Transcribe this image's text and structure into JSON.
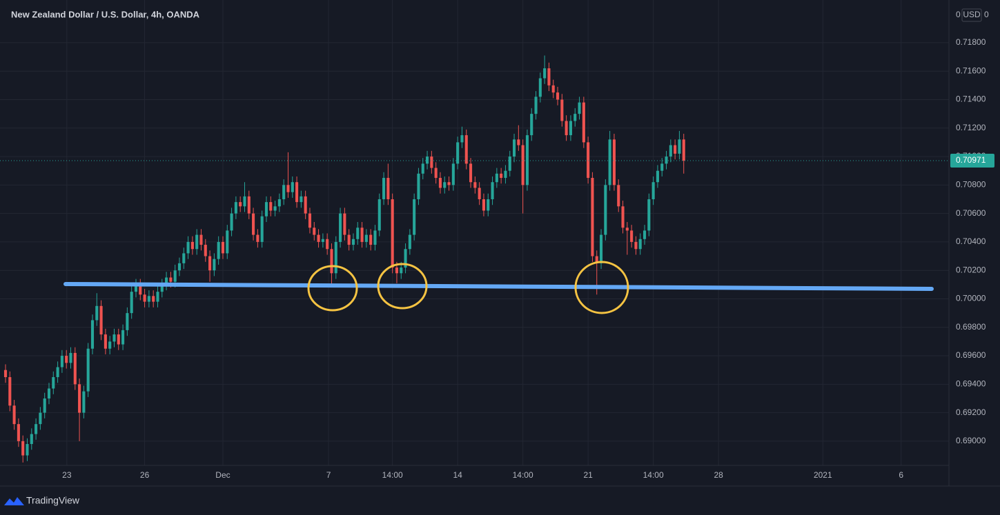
{
  "chart_data": {
    "type": "candlestick",
    "title": "New Zealand Dollar / U.S. Dollar, 4h, OANDA",
    "scale_header": {
      "left": "0",
      "unit": "USD",
      "right": "0"
    },
    "brand": "TradingView",
    "up_color": "#26a69a",
    "down_color": "#ef5350",
    "grid": true,
    "xlim": [
      -1.27,
      217
    ],
    "xticks": [
      {
        "value": 14.1,
        "label": "23"
      },
      {
        "value": 32,
        "label": "26"
      },
      {
        "value": 50,
        "label": "Dec"
      },
      {
        "value": 74.3,
        "label": "7"
      },
      {
        "value": 89,
        "label": "14:00"
      },
      {
        "value": 104,
        "label": "14"
      },
      {
        "value": 119,
        "label": "14:00"
      },
      {
        "value": 134,
        "label": "21"
      },
      {
        "value": 149,
        "label": "14:00"
      },
      {
        "value": 164,
        "label": "28"
      },
      {
        "value": 188,
        "label": "2021"
      },
      {
        "value": 206,
        "label": "6"
      }
    ],
    "ylim": [
      0.6883,
      0.721
    ],
    "yticks": [
      {
        "value": 0.69,
        "label": "0.69000"
      },
      {
        "value": 0.692,
        "label": "0.69200"
      },
      {
        "value": 0.694,
        "label": "0.69400"
      },
      {
        "value": 0.696,
        "label": "0.69600"
      },
      {
        "value": 0.698,
        "label": "0.69800"
      },
      {
        "value": 0.7,
        "label": "0.70000"
      },
      {
        "value": 0.702,
        "label": "0.70200"
      },
      {
        "value": 0.704,
        "label": "0.70400"
      },
      {
        "value": 0.706,
        "label": "0.70600"
      },
      {
        "value": 0.708,
        "label": "0.70800"
      },
      {
        "value": 0.71,
        "label": "0.71000"
      },
      {
        "value": 0.712,
        "label": "0.71200"
      },
      {
        "value": 0.714,
        "label": "0.71400"
      },
      {
        "value": 0.716,
        "label": "0.71600"
      },
      {
        "value": 0.718,
        "label": "0.71800"
      }
    ],
    "candles": [
      [
        0.695,
        0.6954,
        0.6941,
        0.6945
      ],
      [
        0.6945,
        0.6949,
        0.6921,
        0.6925
      ],
      [
        0.6925,
        0.6929,
        0.6908,
        0.6912
      ],
      [
        0.6912,
        0.6916,
        0.6896,
        0.69
      ],
      [
        0.69,
        0.6904,
        0.6885,
        0.689
      ],
      [
        0.689,
        0.6902,
        0.6886,
        0.6898
      ],
      [
        0.6898,
        0.6909,
        0.6894,
        0.6905
      ],
      [
        0.6905,
        0.6916,
        0.6901,
        0.6912
      ],
      [
        0.6912,
        0.6924,
        0.6908,
        0.692
      ],
      [
        0.692,
        0.6934,
        0.6916,
        0.693
      ],
      [
        0.693,
        0.6941,
        0.6926,
        0.6937
      ],
      [
        0.6937,
        0.6949,
        0.6933,
        0.6945
      ],
      [
        0.6945,
        0.6956,
        0.6941,
        0.6952
      ],
      [
        0.6952,
        0.6964,
        0.6948,
        0.696
      ],
      [
        0.696,
        0.6964,
        0.6951,
        0.6955
      ],
      [
        0.6955,
        0.6966,
        0.6951,
        0.6962
      ],
      [
        0.6962,
        0.6966,
        0.6936,
        0.694
      ],
      [
        0.694,
        0.6944,
        0.69,
        0.692
      ],
      [
        0.692,
        0.6939,
        0.6916,
        0.6935
      ],
      [
        0.6935,
        0.6969,
        0.6931,
        0.6965
      ],
      [
        0.6965,
        0.6989,
        0.6961,
        0.6985
      ],
      [
        0.6985,
        0.7004,
        0.6981,
        0.6995
      ],
      [
        0.6995,
        0.6999,
        0.6971,
        0.6975
      ],
      [
        0.6975,
        0.6979,
        0.6961,
        0.6965
      ],
      [
        0.6965,
        0.6974,
        0.6961,
        0.697
      ],
      [
        0.697,
        0.6979,
        0.6966,
        0.6975
      ],
      [
        0.6975,
        0.6979,
        0.6964,
        0.6968
      ],
      [
        0.6968,
        0.6982,
        0.6964,
        0.6978
      ],
      [
        0.6978,
        0.6994,
        0.6974,
        0.699
      ],
      [
        0.699,
        0.7009,
        0.6986,
        0.7005
      ],
      [
        0.7005,
        0.7014,
        0.7001,
        0.701
      ],
      [
        0.701,
        0.7014,
        0.6999,
        0.7003
      ],
      [
        0.7003,
        0.7007,
        0.6994,
        0.6998
      ],
      [
        0.6998,
        0.7006,
        0.6994,
        0.7002
      ],
      [
        0.7002,
        0.7006,
        0.6994,
        0.6998
      ],
      [
        0.6998,
        0.7009,
        0.6994,
        0.7005
      ],
      [
        0.7005,
        0.7014,
        0.7001,
        0.701
      ],
      [
        0.701,
        0.7019,
        0.7006,
        0.7015
      ],
      [
        0.7015,
        0.7019,
        0.7008,
        0.7012
      ],
      [
        0.7012,
        0.7024,
        0.7008,
        0.702
      ],
      [
        0.702,
        0.7029,
        0.7016,
        0.7025
      ],
      [
        0.7025,
        0.7036,
        0.7021,
        0.7032
      ],
      [
        0.7032,
        0.7044,
        0.7028,
        0.704
      ],
      [
        0.704,
        0.7044,
        0.7031,
        0.7035
      ],
      [
        0.7035,
        0.7049,
        0.7031,
        0.7045
      ],
      [
        0.7045,
        0.7049,
        0.7034,
        0.7038
      ],
      [
        0.7038,
        0.7042,
        0.7026,
        0.703
      ],
      [
        0.703,
        0.7034,
        0.7012,
        0.702
      ],
      [
        0.702,
        0.7032,
        0.7016,
        0.7028
      ],
      [
        0.7028,
        0.7044,
        0.7024,
        0.704
      ],
      [
        0.704,
        0.7044,
        0.7028,
        0.7032
      ],
      [
        0.7032,
        0.7052,
        0.7028,
        0.7048
      ],
      [
        0.7048,
        0.7064,
        0.7044,
        0.706
      ],
      [
        0.706,
        0.7072,
        0.7056,
        0.7068
      ],
      [
        0.7068,
        0.7072,
        0.7061,
        0.7065
      ],
      [
        0.7065,
        0.7082,
        0.7061,
        0.7072
      ],
      [
        0.7072,
        0.7076,
        0.7056,
        0.706
      ],
      [
        0.706,
        0.7064,
        0.7041,
        0.7045
      ],
      [
        0.7045,
        0.7049,
        0.7036,
        0.704
      ],
      [
        0.704,
        0.7062,
        0.7036,
        0.7058
      ],
      [
        0.7058,
        0.7072,
        0.7054,
        0.7068
      ],
      [
        0.7068,
        0.7072,
        0.7058,
        0.7062
      ],
      [
        0.7062,
        0.7069,
        0.7058,
        0.7065
      ],
      [
        0.7065,
        0.7074,
        0.7061,
        0.707
      ],
      [
        0.707,
        0.7084,
        0.7066,
        0.708
      ],
      [
        0.708,
        0.7103,
        0.7071,
        0.7075
      ],
      [
        0.7075,
        0.7086,
        0.7071,
        0.7082
      ],
      [
        0.7082,
        0.7086,
        0.7064,
        0.7068
      ],
      [
        0.7068,
        0.7076,
        0.7064,
        0.7072
      ],
      [
        0.7072,
        0.7076,
        0.7056,
        0.706
      ],
      [
        0.706,
        0.7064,
        0.7046,
        0.705
      ],
      [
        0.705,
        0.7054,
        0.7041,
        0.7045
      ],
      [
        0.7045,
        0.7049,
        0.7036,
        0.704
      ],
      [
        0.704,
        0.7046,
        0.7036,
        0.7042
      ],
      [
        0.7042,
        0.7046,
        0.7031,
        0.7035
      ],
      [
        0.7035,
        0.7039,
        0.7008,
        0.7018
      ],
      [
        0.7018,
        0.7044,
        0.7014,
        0.704
      ],
      [
        0.704,
        0.7064,
        0.7036,
        0.706
      ],
      [
        0.706,
        0.7064,
        0.7041,
        0.7045
      ],
      [
        0.7045,
        0.7049,
        0.7034,
        0.7038
      ],
      [
        0.7038,
        0.7046,
        0.7034,
        0.7042
      ],
      [
        0.7042,
        0.7054,
        0.7038,
        0.705
      ],
      [
        0.705,
        0.7054,
        0.7036,
        0.704
      ],
      [
        0.704,
        0.7049,
        0.7036,
        0.7045
      ],
      [
        0.7045,
        0.7049,
        0.7034,
        0.7038
      ],
      [
        0.7038,
        0.7052,
        0.7034,
        0.7048
      ],
      [
        0.7048,
        0.7074,
        0.7044,
        0.707
      ],
      [
        0.707,
        0.7089,
        0.7066,
        0.7085
      ],
      [
        0.7085,
        0.7095,
        0.7066,
        0.707
      ],
      [
        0.707,
        0.7074,
        0.7018,
        0.7022
      ],
      [
        0.7022,
        0.7026,
        0.7011,
        0.7018
      ],
      [
        0.7018,
        0.7026,
        0.7014,
        0.7022
      ],
      [
        0.7022,
        0.7039,
        0.7018,
        0.7035
      ],
      [
        0.7035,
        0.7049,
        0.7031,
        0.7045
      ],
      [
        0.7045,
        0.7074,
        0.7041,
        0.707
      ],
      [
        0.707,
        0.7092,
        0.7066,
        0.7088
      ],
      [
        0.7088,
        0.7099,
        0.7084,
        0.7095
      ],
      [
        0.7095,
        0.7104,
        0.7091,
        0.71
      ],
      [
        0.71,
        0.7104,
        0.7088,
        0.7092
      ],
      [
        0.7092,
        0.7096,
        0.7081,
        0.7085
      ],
      [
        0.7085,
        0.7089,
        0.7074,
        0.7078
      ],
      [
        0.7078,
        0.7086,
        0.7074,
        0.7082
      ],
      [
        0.7082,
        0.7086,
        0.7076,
        0.708
      ],
      [
        0.708,
        0.7099,
        0.7076,
        0.7095
      ],
      [
        0.7095,
        0.7114,
        0.7091,
        0.711
      ],
      [
        0.711,
        0.7121,
        0.7106,
        0.7115
      ],
      [
        0.7115,
        0.7119,
        0.7091,
        0.7095
      ],
      [
        0.7095,
        0.7099,
        0.7078,
        0.7082
      ],
      [
        0.7082,
        0.7086,
        0.7074,
        0.7078
      ],
      [
        0.7078,
        0.7082,
        0.7066,
        0.707
      ],
      [
        0.707,
        0.7074,
        0.7058,
        0.7062
      ],
      [
        0.7062,
        0.7074,
        0.7058,
        0.707
      ],
      [
        0.707,
        0.7086,
        0.7066,
        0.7082
      ],
      [
        0.7082,
        0.7092,
        0.7078,
        0.7088
      ],
      [
        0.7088,
        0.7092,
        0.7081,
        0.7085
      ],
      [
        0.7085,
        0.7094,
        0.7081,
        0.709
      ],
      [
        0.709,
        0.7104,
        0.7086,
        0.71
      ],
      [
        0.71,
        0.7116,
        0.7096,
        0.7112
      ],
      [
        0.7112,
        0.7122,
        0.7104,
        0.7108
      ],
      [
        0.7108,
        0.7112,
        0.706,
        0.708
      ],
      [
        0.708,
        0.7119,
        0.7076,
        0.7115
      ],
      [
        0.7115,
        0.7134,
        0.7111,
        0.713
      ],
      [
        0.713,
        0.7146,
        0.7126,
        0.7142
      ],
      [
        0.7142,
        0.7159,
        0.7138,
        0.7155
      ],
      [
        0.7155,
        0.7171,
        0.7151,
        0.7162
      ],
      [
        0.7162,
        0.7166,
        0.7146,
        0.715
      ],
      [
        0.715,
        0.7154,
        0.7141,
        0.7145
      ],
      [
        0.7145,
        0.7149,
        0.7136,
        0.714
      ],
      [
        0.714,
        0.7144,
        0.7121,
        0.7125
      ],
      [
        0.7125,
        0.7129,
        0.7111,
        0.7115
      ],
      [
        0.7115,
        0.7129,
        0.7111,
        0.7125
      ],
      [
        0.7125,
        0.7134,
        0.7121,
        0.713
      ],
      [
        0.713,
        0.7142,
        0.7126,
        0.7138
      ],
      [
        0.7138,
        0.7142,
        0.7106,
        0.711
      ],
      [
        0.711,
        0.7114,
        0.7081,
        0.7085
      ],
      [
        0.7085,
        0.7089,
        0.7026,
        0.703
      ],
      [
        0.703,
        0.7034,
        0.7003,
        0.7025
      ],
      [
        0.7025,
        0.7049,
        0.7021,
        0.7045
      ],
      [
        0.7045,
        0.7084,
        0.7041,
        0.708
      ],
      [
        0.708,
        0.7118,
        0.7076,
        0.7112
      ],
      [
        0.7112,
        0.7116,
        0.7076,
        0.708
      ],
      [
        0.708,
        0.7084,
        0.7061,
        0.7065
      ],
      [
        0.7065,
        0.7069,
        0.7046,
        0.705
      ],
      [
        0.705,
        0.7054,
        0.7031,
        0.7048
      ],
      [
        0.7048,
        0.7052,
        0.7036,
        0.704
      ],
      [
        0.704,
        0.7044,
        0.7031,
        0.7035
      ],
      [
        0.7035,
        0.7046,
        0.7031,
        0.7042
      ],
      [
        0.7042,
        0.7052,
        0.7038,
        0.7048
      ],
      [
        0.7048,
        0.7074,
        0.7044,
        0.707
      ],
      [
        0.707,
        0.7086,
        0.7066,
        0.7082
      ],
      [
        0.7082,
        0.7094,
        0.7078,
        0.709
      ],
      [
        0.709,
        0.7099,
        0.7086,
        0.7095
      ],
      [
        0.7095,
        0.7104,
        0.7091,
        0.71
      ],
      [
        0.71,
        0.7112,
        0.7096,
        0.7108
      ],
      [
        0.7108,
        0.7112,
        0.7098,
        0.7102
      ],
      [
        0.7102,
        0.7118,
        0.7098,
        0.7112
      ],
      [
        0.7112,
        0.7116,
        0.7088,
        0.70971
      ]
    ]
  }
}
